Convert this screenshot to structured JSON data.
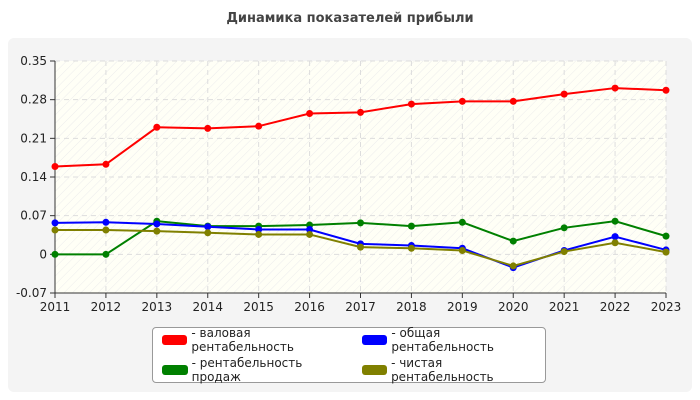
{
  "chart_data": {
    "type": "line",
    "title": "Динамика показателей прибыли",
    "xlabel": "",
    "ylabel": "",
    "x": [
      2011,
      2012,
      2013,
      2014,
      2015,
      2016,
      2017,
      2018,
      2019,
      2020,
      2021,
      2022,
      2023
    ],
    "ylim": [
      -0.07,
      0.35
    ],
    "yticks": [
      "0.35",
      "0.28",
      "0.21",
      "0.14",
      "0.07",
      "0",
      "-0.07"
    ],
    "ytick_values": [
      0.35,
      0.28,
      0.21,
      0.14,
      0.07,
      0,
      -0.07
    ],
    "grid": true,
    "legend_position": "bottom",
    "series": [
      {
        "name": "- валовая рентабельность",
        "color": "#ff0000",
        "values": [
          0.159,
          0.163,
          0.23,
          0.228,
          0.232,
          0.255,
          0.257,
          0.272,
          0.277,
          0.277,
          0.29,
          0.301,
          0.297
        ]
      },
      {
        "name": "- общая рентабельность",
        "color": "#0000ff",
        "values": [
          0.057,
          0.058,
          0.055,
          0.05,
          0.045,
          0.045,
          0.019,
          0.016,
          0.011,
          -0.024,
          0.007,
          0.032,
          0.008
        ]
      },
      {
        "name": "- рентабельность продаж",
        "color": "#008000",
        "values": [
          0,
          0,
          0.06,
          0.051,
          0.051,
          0.053,
          0.057,
          0.051,
          0.058,
          0.024,
          0.048,
          0.06,
          0.033
        ]
      },
      {
        "name": "- чистая рентабельность",
        "color": "#808000",
        "values": [
          0.044,
          0.044,
          0.042,
          0.039,
          0.036,
          0.036,
          0.013,
          0.011,
          0.007,
          -0.021,
          0.005,
          0.021,
          0.004
        ]
      }
    ]
  }
}
